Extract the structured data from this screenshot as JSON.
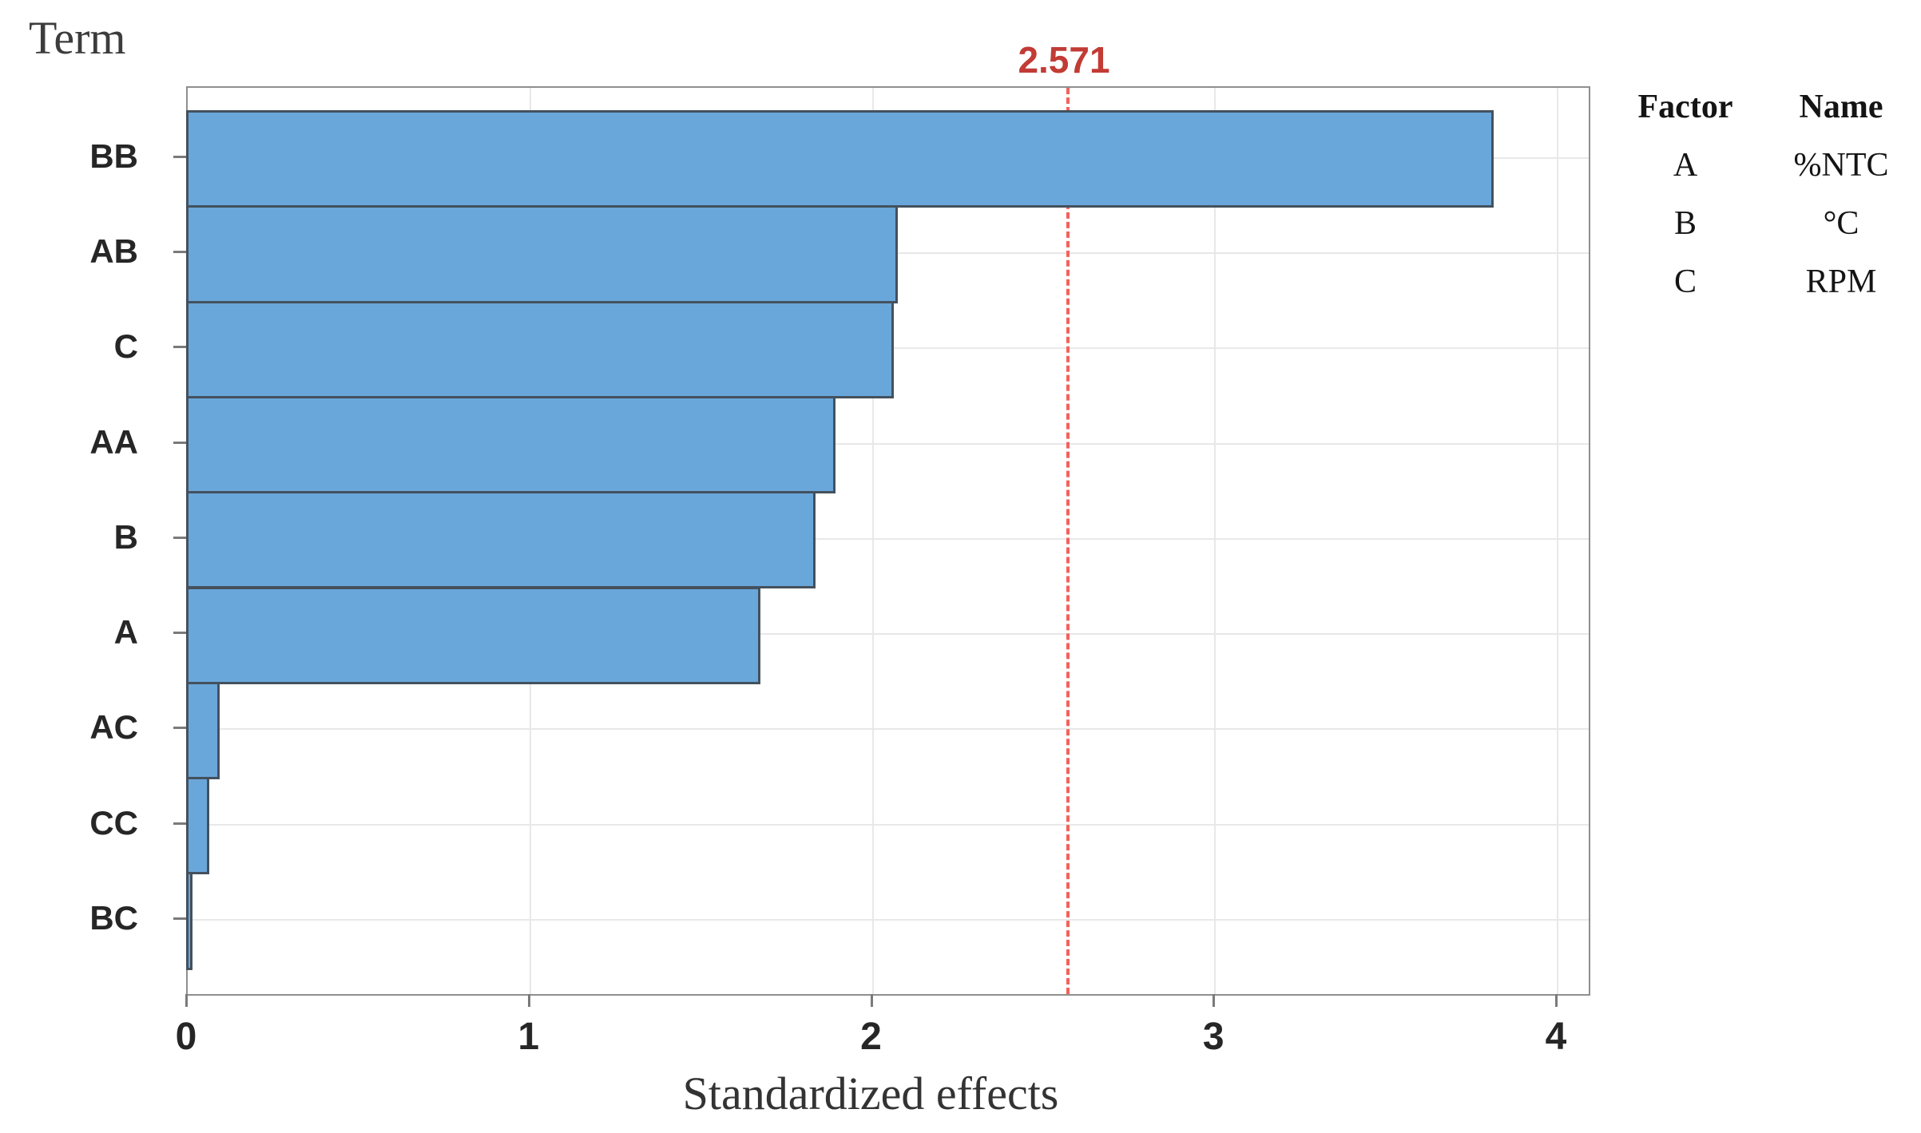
{
  "chart_data": {
    "type": "bar",
    "orientation": "horizontal",
    "chart_kind": "pareto-chart-of-standardized-effects",
    "term_axis_title": "Term",
    "xlabel": "Standardized effects",
    "categories": [
      "BB",
      "AB",
      "C",
      "AA",
      "B",
      "A",
      "AC",
      "CC",
      "BC"
    ],
    "values": [
      3.81,
      2.07,
      2.06,
      1.89,
      1.83,
      1.67,
      0.09,
      0.06,
      0.01
    ],
    "x_ticks": [
      0,
      1,
      2,
      3,
      4
    ],
    "xlim": [
      0,
      4.09
    ],
    "reference_line": {
      "value": 2.571,
      "label": "2.571"
    },
    "grid": {
      "vertical_at_ticks": true,
      "horizontal_at_category_centers": true
    },
    "legend": {
      "position": "top-right",
      "headers": [
        "Factor",
        "Name"
      ],
      "rows": [
        {
          "factor": "A",
          "name": "%NTC"
        },
        {
          "factor": "B",
          "name": "°C"
        },
        {
          "factor": "C",
          "name": "RPM"
        }
      ]
    }
  },
  "colors": {
    "bar_fill": "#69A7DB",
    "bar_border": "#44515D",
    "reference_line": "#F4625C",
    "reference_label": "#C23B35",
    "frame": "#8F8F8F",
    "grid_line": "#E8E8E8",
    "tick_mark": "#7A7A7A",
    "tick_text": "#262626",
    "axis_title_text": "#3C3C3C",
    "legend_text": "#141414"
  }
}
